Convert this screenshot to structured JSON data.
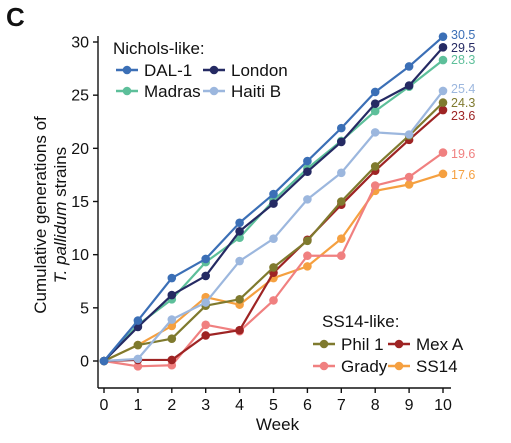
{
  "panel_label": "C",
  "legend": {
    "groups": [
      {
        "heading": "Nichols-like:",
        "entries": [
          "DAL-1",
          "London",
          "Madras",
          "Haiti B"
        ]
      },
      {
        "heading": "SS14-like:",
        "entries": [
          "Phil 1",
          "Mex A",
          "Grady",
          "SS14"
        ]
      }
    ]
  },
  "chart_data": {
    "type": "line",
    "xlabel": "Week",
    "ylabel_parts": [
      "Cumulative generations of",
      "T. pallidum",
      "strains"
    ],
    "xlim": [
      0,
      10
    ],
    "ylim": [
      0,
      30
    ],
    "xticks": [
      0,
      1,
      2,
      3,
      4,
      5,
      6,
      7,
      8,
      9,
      10
    ],
    "yticks": [
      0,
      5,
      10,
      15,
      20,
      25,
      30
    ],
    "grid": false,
    "legend_placement": "top-left and bottom-right",
    "x": [
      0,
      1,
      2,
      3,
      4,
      5,
      6,
      7,
      8,
      9,
      10
    ],
    "series": [
      {
        "name": "DAL-1",
        "group": "Nichols-like",
        "color": "#3b6fb6",
        "end_label": "30.5",
        "values": [
          0,
          3.8,
          7.8,
          9.6,
          13.0,
          15.7,
          18.8,
          21.9,
          25.3,
          27.7,
          30.5
        ]
      },
      {
        "name": "London",
        "group": "Nichols-like",
        "color": "#252a63",
        "end_label": "29.5",
        "values": [
          0,
          3.2,
          6.2,
          8.0,
          12.2,
          14.8,
          17.8,
          20.6,
          24.2,
          25.9,
          29.5
        ]
      },
      {
        "name": "Madras",
        "group": "Nichols-like",
        "color": "#5dbf9a",
        "end_label": "28.3",
        "values": [
          0,
          3.4,
          5.8,
          9.3,
          11.6,
          15.1,
          18.1,
          20.7,
          23.5,
          25.8,
          28.3
        ]
      },
      {
        "name": "Haiti B",
        "group": "Nichols-like",
        "color": "#9cb7de",
        "end_label": "25.4",
        "values": [
          0,
          0.2,
          3.9,
          5.5,
          9.4,
          11.5,
          15.2,
          17.7,
          21.5,
          21.3,
          25.4
        ]
      },
      {
        "name": "Phil 1",
        "group": "SS14-like",
        "color": "#7f7a2e",
        "end_label": "24.3",
        "values": [
          0,
          1.5,
          2.1,
          5.2,
          5.8,
          8.8,
          11.3,
          15.0,
          18.3,
          21.2,
          24.3
        ]
      },
      {
        "name": "Mex A",
        "group": "SS14-like",
        "color": "#9e2424",
        "end_label": "23.6",
        "values": [
          0,
          0.1,
          0.1,
          2.4,
          2.9,
          8.3,
          11.4,
          14.7,
          17.9,
          20.8,
          23.6
        ]
      },
      {
        "name": "Grady",
        "group": "SS14-like",
        "color": "#f08080",
        "end_label": "19.6",
        "values": [
          0,
          -0.5,
          -0.4,
          3.4,
          2.8,
          5.7,
          9.9,
          9.9,
          16.5,
          17.3,
          19.6
        ]
      },
      {
        "name": "SS14",
        "group": "SS14-like",
        "color": "#f5a040",
        "end_label": "17.6",
        "values": [
          0,
          1.5,
          3.3,
          6.0,
          5.3,
          7.8,
          8.9,
          11.5,
          16.0,
          16.6,
          17.6
        ]
      }
    ]
  }
}
